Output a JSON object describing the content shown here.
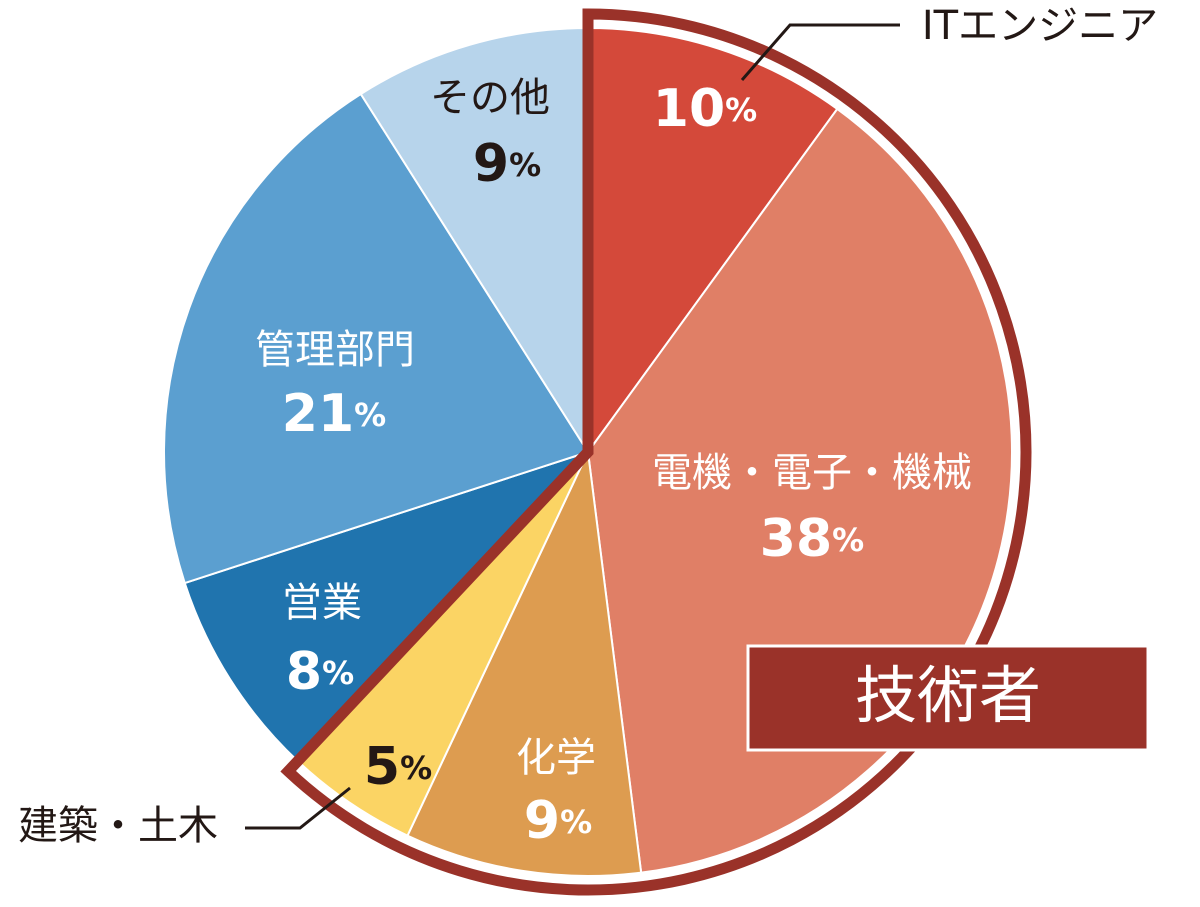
{
  "chart_data": {
    "type": "pie",
    "categories": [
      "ITエンジニア",
      "電機・電子・機械",
      "化学",
      "建築・土木",
      "営業",
      "管理部門",
      "その他"
    ],
    "values": [
      10,
      38,
      9,
      5,
      8,
      21,
      9
    ],
    "value_labels": [
      "10%",
      "38%",
      "9%",
      "5%",
      "8%",
      "21%",
      "9%"
    ],
    "colors": [
      "#d4493a",
      "#e07f66",
      "#dd9c50",
      "#fbd464",
      "#2074ae",
      "#5b9fd0",
      "#b7d4eb"
    ],
    "highlight": {
      "label": "技術者",
      "categories": [
        "ITエンジニア",
        "電機・電子・機械",
        "化学",
        "建築・土木"
      ],
      "color": "#9a3229"
    }
  }
}
